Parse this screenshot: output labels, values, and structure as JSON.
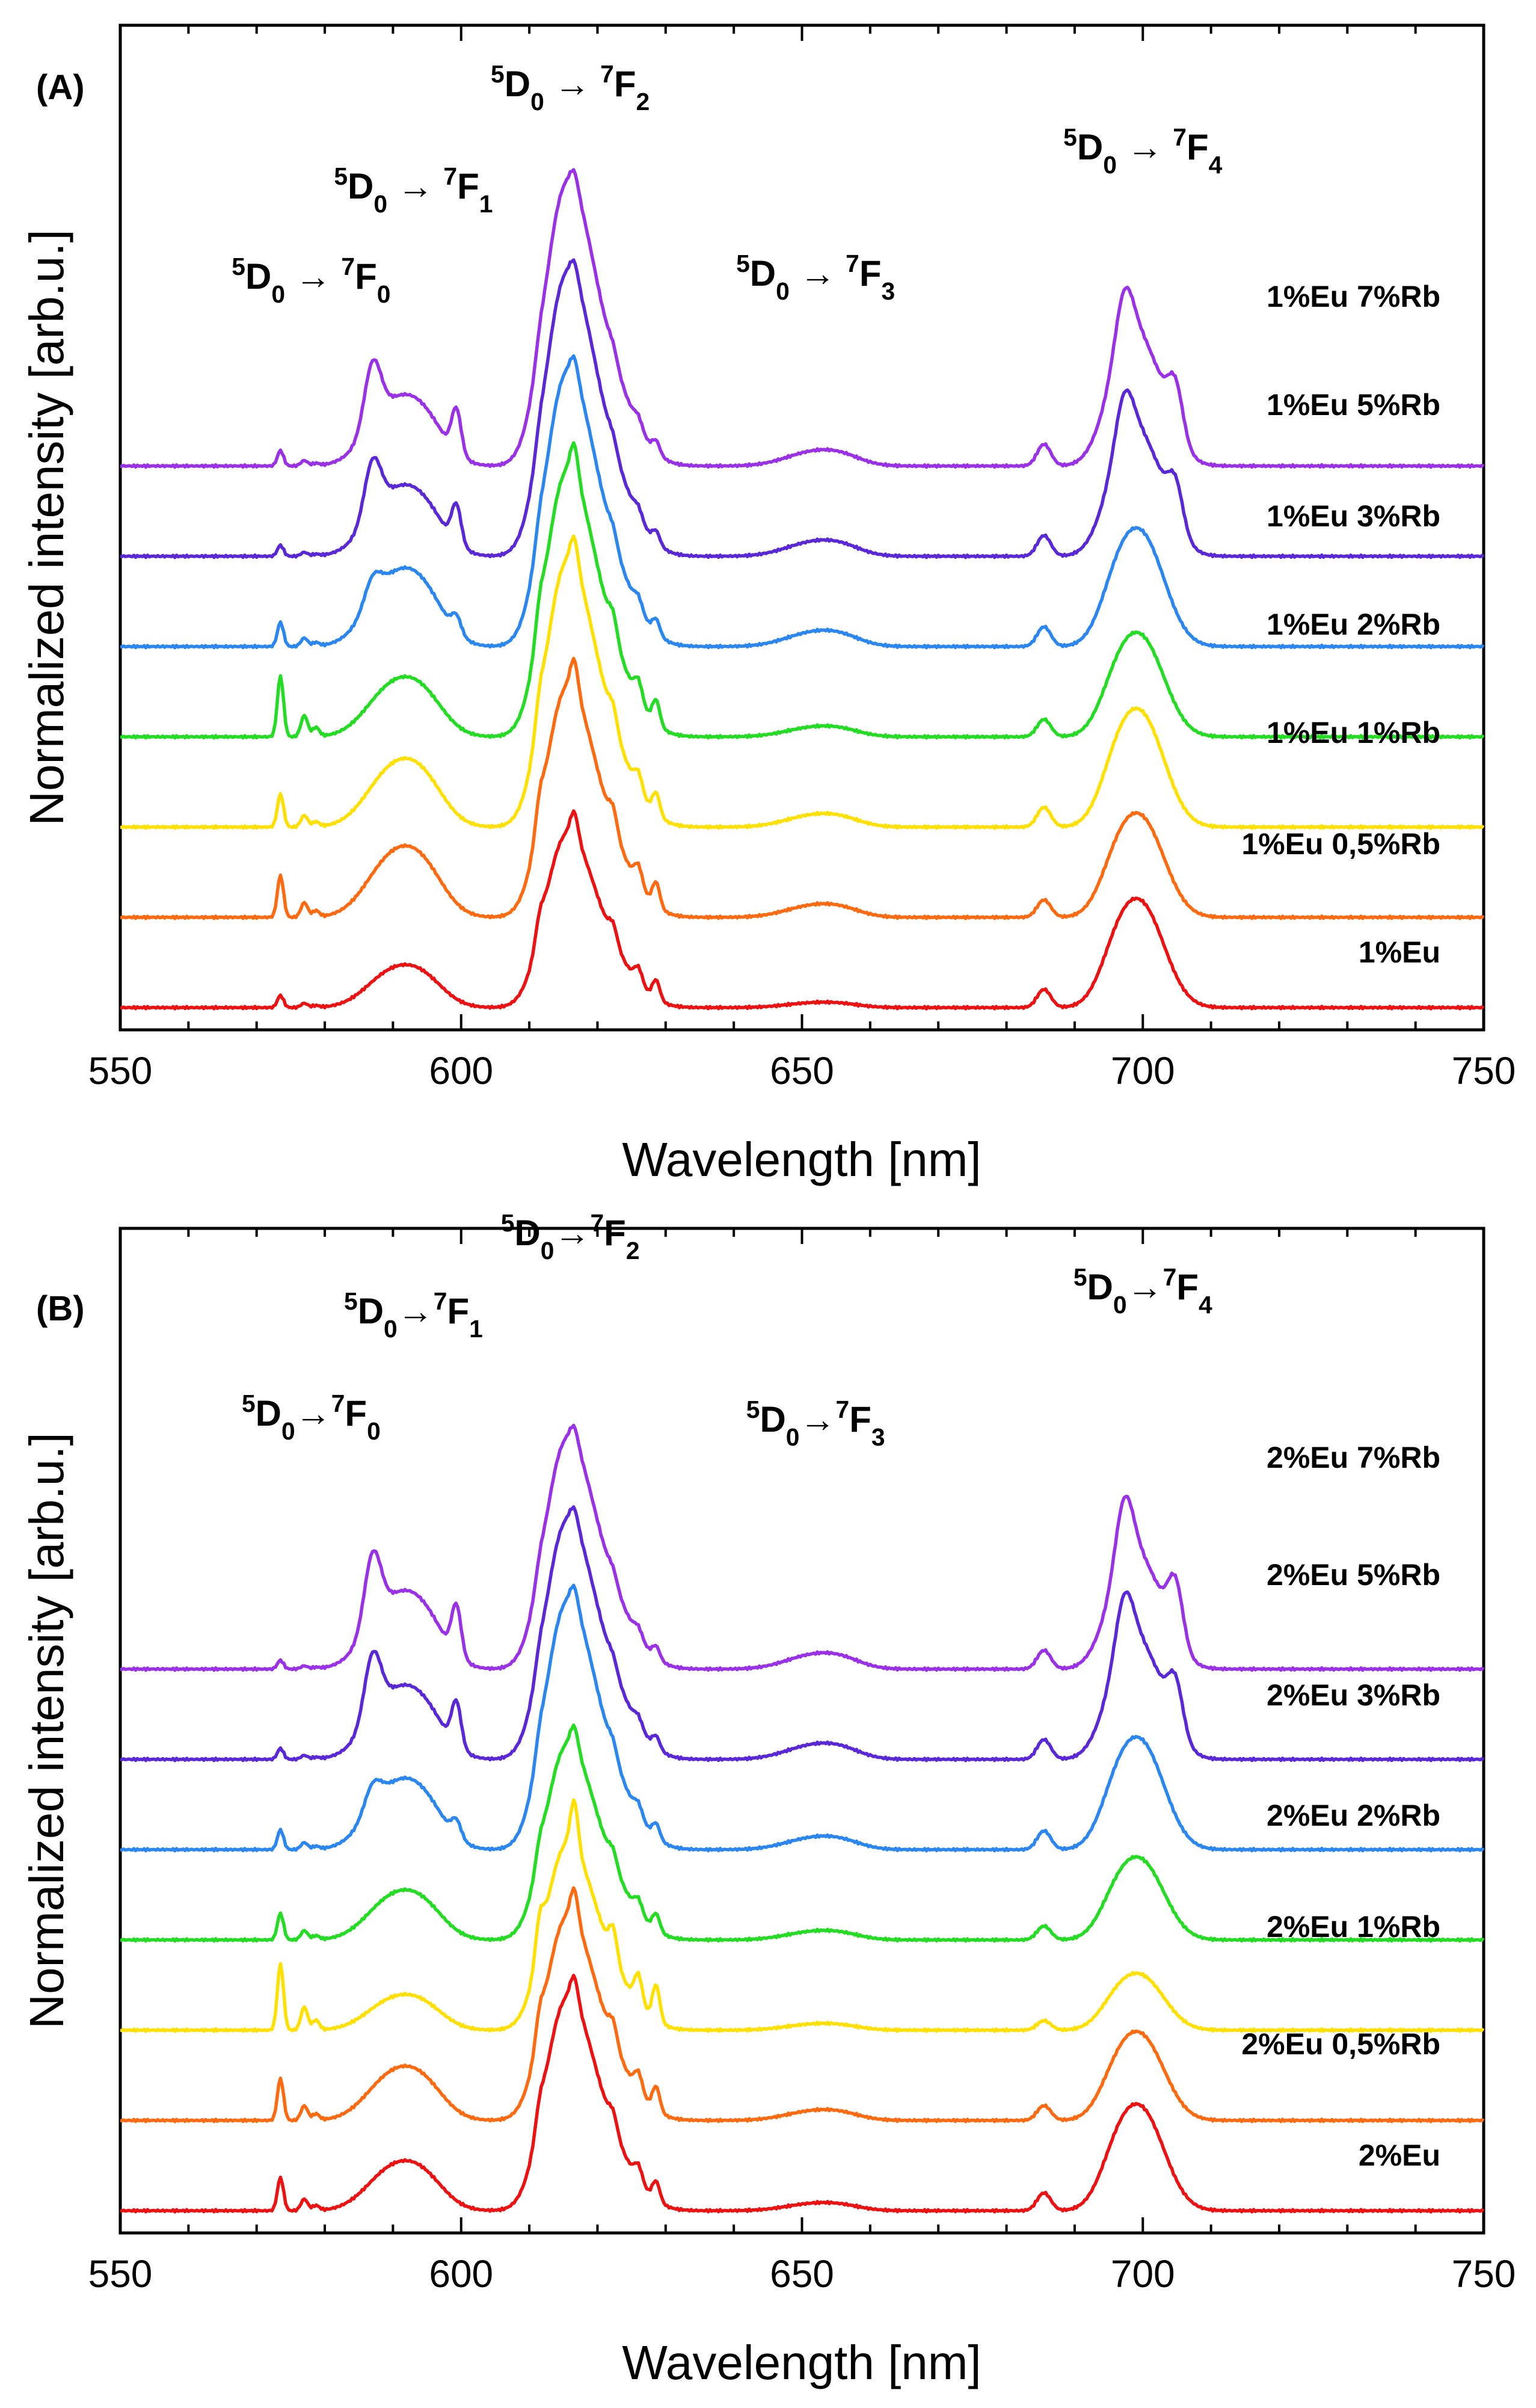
{
  "chart_data": [
    {
      "type": "line",
      "panel_label": "(A)",
      "xlabel": "Wavelength [nm]",
      "ylabel": "Normalized intensity [arb.u.]",
      "xlim": [
        550,
        750
      ],
      "xticks": [
        "550",
        "600",
        "650",
        "700",
        "750"
      ],
      "yticks": [],
      "grid": false,
      "legend": "inline labels at right of each trace",
      "band_labels": [
        {
          "text": "⁵D₀ → ⁷F₀",
          "wavelength": 578
        },
        {
          "text": "⁵D₀ → ⁷F₁",
          "wavelength": 593
        },
        {
          "text": "⁵D₀ → ⁷F₂",
          "wavelength": 616
        },
        {
          "text": "⁵D₀ → ⁷F₃",
          "wavelength": 652
        },
        {
          "text": "⁵D₀ → ⁷F₄",
          "wavelength": 700
        }
      ],
      "series": [
        {
          "name": "1%Eu",
          "color": "#ee1111",
          "offset": 0.0,
          "f1": 0.3,
          "f0": 0.11,
          "f2": 0.98,
          "f2_jagged": 0.16,
          "f3": 0.04,
          "f4": 0.92,
          "f4_split": 0.0,
          "f1_peak587": 0.0
        },
        {
          "name": "1%Eu 0,5%Rb",
          "color": "#ff6a10",
          "offset": 0.82,
          "f1": 0.5,
          "f0": 0.38,
          "f2": 1.3,
          "f2_jagged": 0.2,
          "f3": 0.1,
          "f4": 0.88,
          "f4_split": 0.0,
          "f1_peak587": 0.0
        },
        {
          "name": "1%Eu 1%Rb",
          "color": "#ffe000",
          "offset": 1.64,
          "f1": 0.48,
          "f0": 0.3,
          "f2": 1.5,
          "f2_jagged": 0.18,
          "f3": 0.1,
          "f4": 1.0,
          "f4_split": 0.0,
          "f1_peak587": 0.0
        },
        {
          "name": "1%Eu 2%Rb",
          "color": "#22dd22",
          "offset": 2.46,
          "f1": 0.42,
          "f0": 0.55,
          "f2": 1.5,
          "f2_jagged": 0.2,
          "f3": 0.08,
          "f4": 0.88,
          "f4_split": 0.0,
          "f1_peak587": 0.0
        },
        {
          "name": "1%Eu 3%Rb",
          "color": "#2a86f0",
          "offset": 3.28,
          "f1": 0.55,
          "f0": 0.22,
          "f2": 1.55,
          "f2_jagged": 0.12,
          "f3": 0.12,
          "f4": 1.0,
          "f4_split": 0.0,
          "f1_peak587": 0.15
        },
        {
          "name": "1%Eu 5%Rb",
          "color": "#5a28d8",
          "offset": 4.1,
          "f1": 0.5,
          "f0": 0.1,
          "f2": 1.6,
          "f2_jagged": 0.1,
          "f3": 0.12,
          "f4": 1.05,
          "f4_split": 0.35,
          "f1_peak587": 0.35
        },
        {
          "name": "1%Eu 7%Rb",
          "color": "#9a30e8",
          "offset": 4.92,
          "f1": 0.5,
          "f0": 0.14,
          "f2": 1.6,
          "f2_jagged": 0.1,
          "f3": 0.12,
          "f4": 1.1,
          "f4_split": 0.4,
          "f1_peak587": 0.4
        }
      ]
    },
    {
      "type": "line",
      "panel_label": "(B)",
      "xlabel": "Wavelength [nm]",
      "ylabel": "Normalized intensity [arb.u.]",
      "xlim": [
        550,
        750
      ],
      "xticks": [
        "550",
        "600",
        "650",
        "700",
        "750"
      ],
      "yticks": [],
      "grid": false,
      "legend": "inline labels at right of each trace",
      "band_labels": [
        {
          "text": "⁵D₀→⁷F₀",
          "wavelength": 578
        },
        {
          "text": "⁵D₀→⁷F₁",
          "wavelength": 593
        },
        {
          "text": "⁵D₀→⁷F₂",
          "wavelength": 616
        },
        {
          "text": "⁵D₀→⁷F₃",
          "wavelength": 652
        },
        {
          "text": "⁵D₀→⁷F₄",
          "wavelength": 700
        }
      ],
      "series": [
        {
          "name": "2%Eu",
          "color": "#ee1111",
          "offset": 0.0,
          "f1": 0.35,
          "f0": 0.3,
          "f2": 1.2,
          "f2_jagged": 0.16,
          "f3": 0.06,
          "f4": 0.9,
          "f4_split": 0.0,
          "f1_peak587": 0.0
        },
        {
          "name": "2%Eu 0,5%Rb",
          "color": "#ff6a10",
          "offset": 0.82,
          "f1": 0.38,
          "f0": 0.38,
          "f2": 1.15,
          "f2_jagged": 0.2,
          "f3": 0.08,
          "f4": 0.75,
          "f4_split": 0.0,
          "f1_peak587": 0.0
        },
        {
          "name": "2%Eu 1%Rb",
          "color": "#ffe000",
          "offset": 1.64,
          "f1": 0.25,
          "f0": 0.6,
          "f2": 1.05,
          "f2_jagged": 0.3,
          "f3": 0.05,
          "f4": 0.48,
          "f4_split": 0.0,
          "f1_peak587": 0.0
        },
        {
          "name": "2%Eu 2%Rb",
          "color": "#22dd22",
          "offset": 2.46,
          "f1": 0.35,
          "f0": 0.24,
          "f2": 1.1,
          "f2_jagged": 0.14,
          "f3": 0.07,
          "f4": 0.7,
          "f4_split": 0.0,
          "f1_peak587": 0.0
        },
        {
          "name": "2%Eu 3%Rb",
          "color": "#2a86f0",
          "offset": 3.28,
          "f1": 0.5,
          "f0": 0.18,
          "f2": 1.4,
          "f2_jagged": 0.12,
          "f3": 0.1,
          "f4": 0.95,
          "f4_split": 0.0,
          "f1_peak587": 0.15
        },
        {
          "name": "2%Eu 5%Rb",
          "color": "#5a28d8",
          "offset": 4.1,
          "f1": 0.52,
          "f0": 0.1,
          "f2": 1.35,
          "f2_jagged": 0.1,
          "f3": 0.12,
          "f4": 1.0,
          "f4_split": 0.4,
          "f1_peak587": 0.4
        },
        {
          "name": "2%Eu 7%Rb",
          "color": "#9a30e8",
          "offset": 4.92,
          "f1": 0.55,
          "f0": 0.08,
          "f2": 1.3,
          "f2_jagged": 0.1,
          "f3": 0.12,
          "f4": 0.95,
          "f4_split": 0.48,
          "f1_peak587": 0.45
        }
      ]
    }
  ]
}
